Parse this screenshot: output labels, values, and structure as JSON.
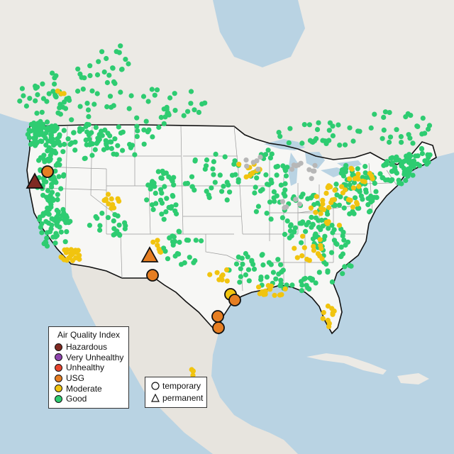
{
  "colors": {
    "water": "#b9d3e3",
    "land": "#eceae5",
    "us_land": "#f7f7f5",
    "mexico_land": "#e7e4de",
    "border": "#111111",
    "state_line": "#9a9a9a",
    "grey_dot": "#b7b7b7"
  },
  "legend": {
    "title": "Air Quality Index",
    "items": [
      {
        "label": "Hazardous",
        "color": "#7f2a22"
      },
      {
        "label": "Very Unhealthy",
        "color": "#8e44ad"
      },
      {
        "label": "Unhealthy",
        "color": "#e8452f"
      },
      {
        "label": "USG",
        "color": "#e67e22"
      },
      {
        "label": "Moderate",
        "color": "#f1c40f"
      },
      {
        "label": "Good",
        "color": "#2ecc71"
      }
    ]
  },
  "type_legend": {
    "items": [
      {
        "label": "temporary",
        "shape": "circle"
      },
      {
        "label": "permanent",
        "shape": "triangle"
      }
    ]
  },
  "large_markers": [
    {
      "category": "Hazardous",
      "shape": "triangle"
    },
    {
      "category": "USG",
      "shape": "circle"
    },
    {
      "category": "USG",
      "shape": "triangle"
    },
    {
      "category": "USG",
      "shape": "circle"
    },
    {
      "category": "Moderate",
      "shape": "circle"
    },
    {
      "category": "USG",
      "shape": "circle"
    },
    {
      "category": "USG",
      "shape": "circle"
    },
    {
      "category": "USG",
      "shape": "circle"
    }
  ]
}
